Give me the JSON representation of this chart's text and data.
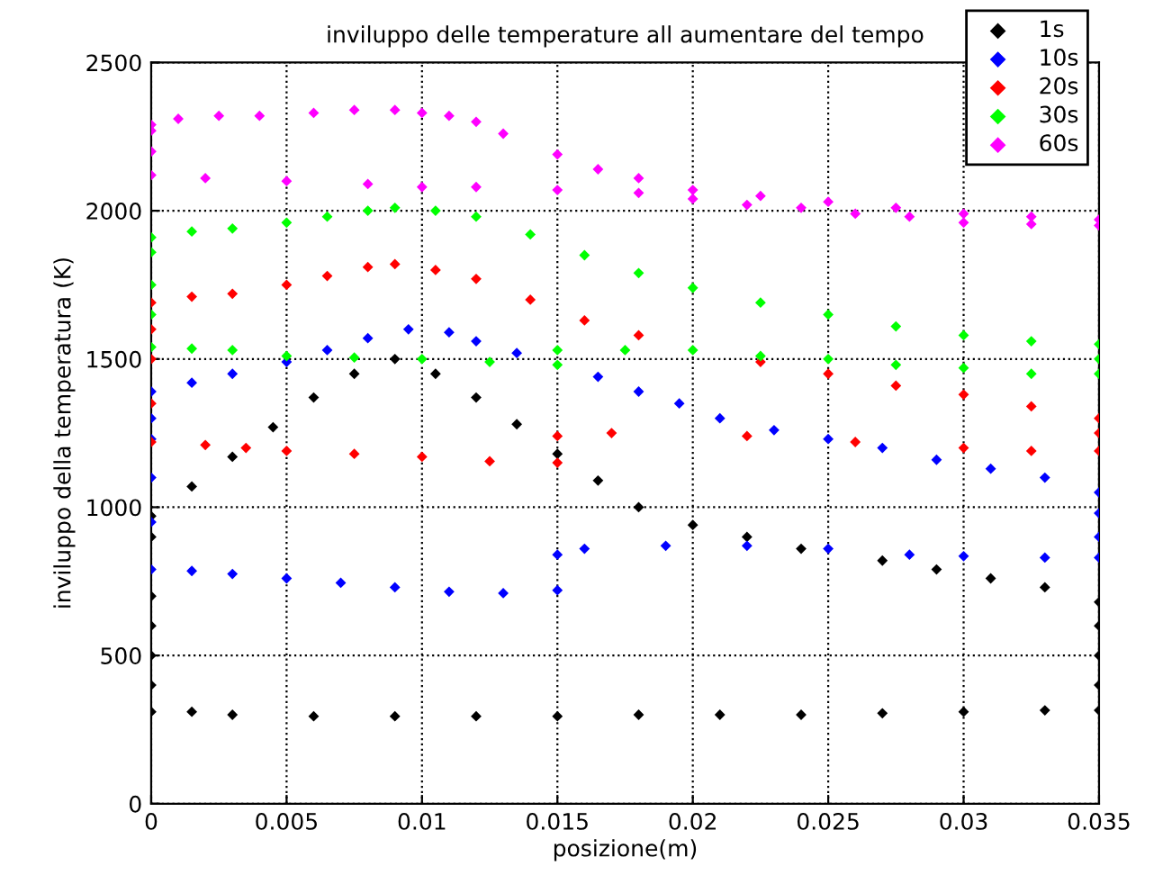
{
  "chart_data": {
    "type": "scatter",
    "title": "inviluppo delle temperature all aumentare del tempo",
    "xlabel": "posizione(m)",
    "ylabel": "inviluppo della temperatura (K)",
    "xlim": [
      0,
      0.035
    ],
    "ylim": [
      0,
      2500
    ],
    "xticks": [
      0,
      0.005,
      0.01,
      0.015,
      0.02,
      0.025,
      0.03,
      0.035
    ],
    "yticks": [
      0,
      500,
      1000,
      1500,
      2000,
      2500
    ],
    "grid": true,
    "legend": "top right",
    "marker": "diamond",
    "series": [
      {
        "name": "1s",
        "color": "#000000",
        "x": [
          0,
          0.0015,
          0.003,
          0.0045,
          0.006,
          0.0075,
          0.009,
          0.0105,
          0.012,
          0.0135,
          0.015,
          0.0165,
          0.018,
          0.02,
          0.022,
          0.024,
          0.027,
          0.029,
          0.031,
          0.033,
          0.035,
          0.035,
          0.035,
          0.035,
          0.035,
          0.033,
          0.03,
          0.027,
          0.024,
          0.021,
          0.018,
          0.015,
          0.012,
          0.009,
          0.006,
          0.003,
          0.0015,
          0,
          0,
          0,
          0,
          0,
          0
        ],
        "values": [
          970,
          1070,
          1170,
          1270,
          1370,
          1450,
          1500,
          1450,
          1370,
          1280,
          1180,
          1090,
          1000,
          940,
          900,
          860,
          820,
          790,
          760,
          730,
          680,
          600,
          500,
          400,
          315,
          315,
          310,
          305,
          300,
          300,
          300,
          295,
          295,
          295,
          295,
          300,
          310,
          310,
          400,
          500,
          600,
          700,
          900
        ]
      },
      {
        "name": "10s",
        "color": "#0000ff",
        "x": [
          0,
          0.0015,
          0.003,
          0.005,
          0.0065,
          0.008,
          0.0095,
          0.011,
          0.012,
          0.0135,
          0.0165,
          0.018,
          0.0195,
          0.021,
          0.023,
          0.025,
          0.027,
          0.029,
          0.031,
          0.033,
          0.035,
          0.035,
          0.035,
          0.035,
          0.033,
          0.03,
          0.028,
          0.025,
          0.022,
          0.019,
          0.016,
          0.015,
          0.015,
          0.013,
          0.011,
          0.009,
          0.007,
          0.005,
          0.003,
          0.0015,
          0,
          0,
          0,
          0,
          0
        ],
        "values": [
          1390,
          1420,
          1450,
          1490,
          1530,
          1570,
          1600,
          1590,
          1560,
          1520,
          1440,
          1390,
          1350,
          1300,
          1260,
          1230,
          1200,
          1160,
          1130,
          1100,
          1050,
          980,
          900,
          830,
          830,
          835,
          840,
          860,
          870,
          870,
          860,
          840,
          720,
          710,
          715,
          730,
          745,
          760,
          775,
          785,
          790,
          950,
          1100,
          1230,
          1300
        ]
      },
      {
        "name": "20s",
        "color": "#ff0000",
        "x": [
          0,
          0.0015,
          0.003,
          0.005,
          0.0065,
          0.008,
          0.009,
          0.0105,
          0.012,
          0.014,
          0.016,
          0.018,
          0.0225,
          0.025,
          0.0275,
          0.03,
          0.0325,
          0.035,
          0.035,
          0.035,
          0.0325,
          0.03,
          0.026,
          0.022,
          0.017,
          0.015,
          0.015,
          0.0125,
          0.01,
          0.0075,
          0.005,
          0.0035,
          0.002,
          0,
          0,
          0,
          0
        ],
        "values": [
          1690,
          1710,
          1720,
          1750,
          1780,
          1810,
          1820,
          1800,
          1770,
          1700,
          1630,
          1580,
          1490,
          1450,
          1410,
          1380,
          1340,
          1300,
          1250,
          1190,
          1190,
          1200,
          1220,
          1240,
          1250,
          1240,
          1150,
          1155,
          1170,
          1180,
          1190,
          1200,
          1210,
          1220,
          1350,
          1500,
          1600
        ]
      },
      {
        "name": "30s",
        "color": "#00ff00",
        "x": [
          0,
          0.0015,
          0.003,
          0.005,
          0.0065,
          0.008,
          0.009,
          0.0105,
          0.012,
          0.014,
          0.016,
          0.018,
          0.02,
          0.0225,
          0.025,
          0.0275,
          0.03,
          0.0325,
          0.035,
          0.035,
          0.035,
          0.0325,
          0.03,
          0.0275,
          0.025,
          0.0225,
          0.02,
          0.0175,
          0.015,
          0.015,
          0.0125,
          0.01,
          0.0075,
          0.005,
          0.003,
          0.0015,
          0,
          0,
          0,
          0
        ],
        "values": [
          1910,
          1930,
          1940,
          1960,
          1980,
          2000,
          2010,
          2000,
          1980,
          1920,
          1850,
          1790,
          1740,
          1690,
          1650,
          1610,
          1580,
          1560,
          1550,
          1500,
          1450,
          1450,
          1470,
          1480,
          1500,
          1510,
          1530,
          1530,
          1530,
          1480,
          1490,
          1500,
          1505,
          1510,
          1530,
          1535,
          1540,
          1650,
          1750,
          1860
        ]
      },
      {
        "name": "60s",
        "color": "#ff00ff",
        "x": [
          0,
          0.001,
          0.0025,
          0.004,
          0.006,
          0.0075,
          0.009,
          0.01,
          0.011,
          0.012,
          0.013,
          0.015,
          0.0165,
          0.018,
          0.02,
          0.0225,
          0.025,
          0.0275,
          0.03,
          0.0325,
          0.035,
          0.035,
          0.0325,
          0.03,
          0.028,
          0.026,
          0.024,
          0.022,
          0.02,
          0.018,
          0.015,
          0.012,
          0.01,
          0.008,
          0.005,
          0.002,
          0,
          0,
          0
        ],
        "values": [
          2290,
          2310,
          2320,
          2320,
          2330,
          2340,
          2340,
          2330,
          2320,
          2300,
          2260,
          2190,
          2140,
          2110,
          2070,
          2050,
          2030,
          2010,
          1990,
          1980,
          1970,
          1950,
          1955,
          1960,
          1980,
          1990,
          2010,
          2020,
          2040,
          2060,
          2070,
          2080,
          2080,
          2090,
          2100,
          2110,
          2120,
          2200,
          2270
        ]
      }
    ]
  }
}
